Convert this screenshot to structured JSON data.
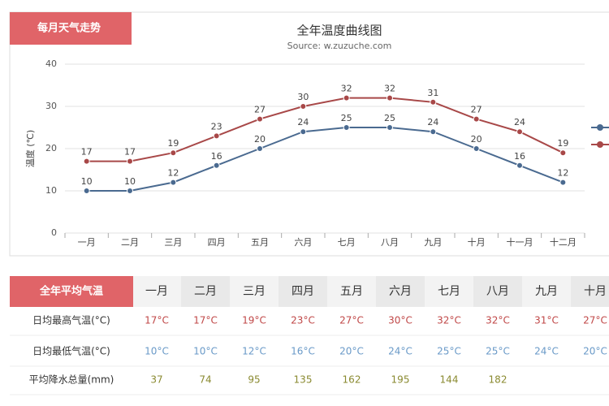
{
  "tab_title": "每月天气走势",
  "chart_data": {
    "type": "line",
    "title": "全年温度曲线图",
    "subtitle": "Source: w.zuzuche.com",
    "y_label": "温度 (℃)",
    "categories": [
      "一月",
      "二月",
      "三月",
      "四月",
      "五月",
      "六月",
      "七月",
      "八月",
      "九月",
      "十月",
      "十一月",
      "十二月"
    ],
    "series": [
      {
        "color": "#4a6a90",
        "values": [
          10,
          10,
          12,
          16,
          20,
          24,
          25,
          25,
          24,
          20,
          16,
          12
        ]
      },
      {
        "color": "#a84848",
        "values": [
          17,
          17,
          19,
          23,
          27,
          30,
          32,
          32,
          31,
          27,
          24,
          19
        ]
      }
    ],
    "ylim": [
      0,
      40
    ],
    "yticks": [
      0,
      10,
      20,
      30,
      40
    ],
    "grid": true,
    "data_labels": true,
    "legend": "right"
  },
  "table": {
    "header": [
      "全年平均气温",
      "一月",
      "二月",
      "三月",
      "四月",
      "五月",
      "六月",
      "七月",
      "八月",
      "九月",
      "十月"
    ],
    "rows": [
      [
        "日均最高气温(°C)",
        "17°C",
        "17°C",
        "19°C",
        "23°C",
        "27°C",
        "30°C",
        "32°C",
        "32°C",
        "31°C",
        "27°C"
      ],
      [
        "日均最低气温(°C)",
        "10°C",
        "10°C",
        "12°C",
        "16°C",
        "20°C",
        "24°C",
        "25°C",
        "25°C",
        "24°C",
        "20°C"
      ],
      [
        "平均降水总量(mm)",
        "37",
        "74",
        "95",
        "135",
        "162",
        "195",
        "144",
        "182"
      ]
    ]
  }
}
